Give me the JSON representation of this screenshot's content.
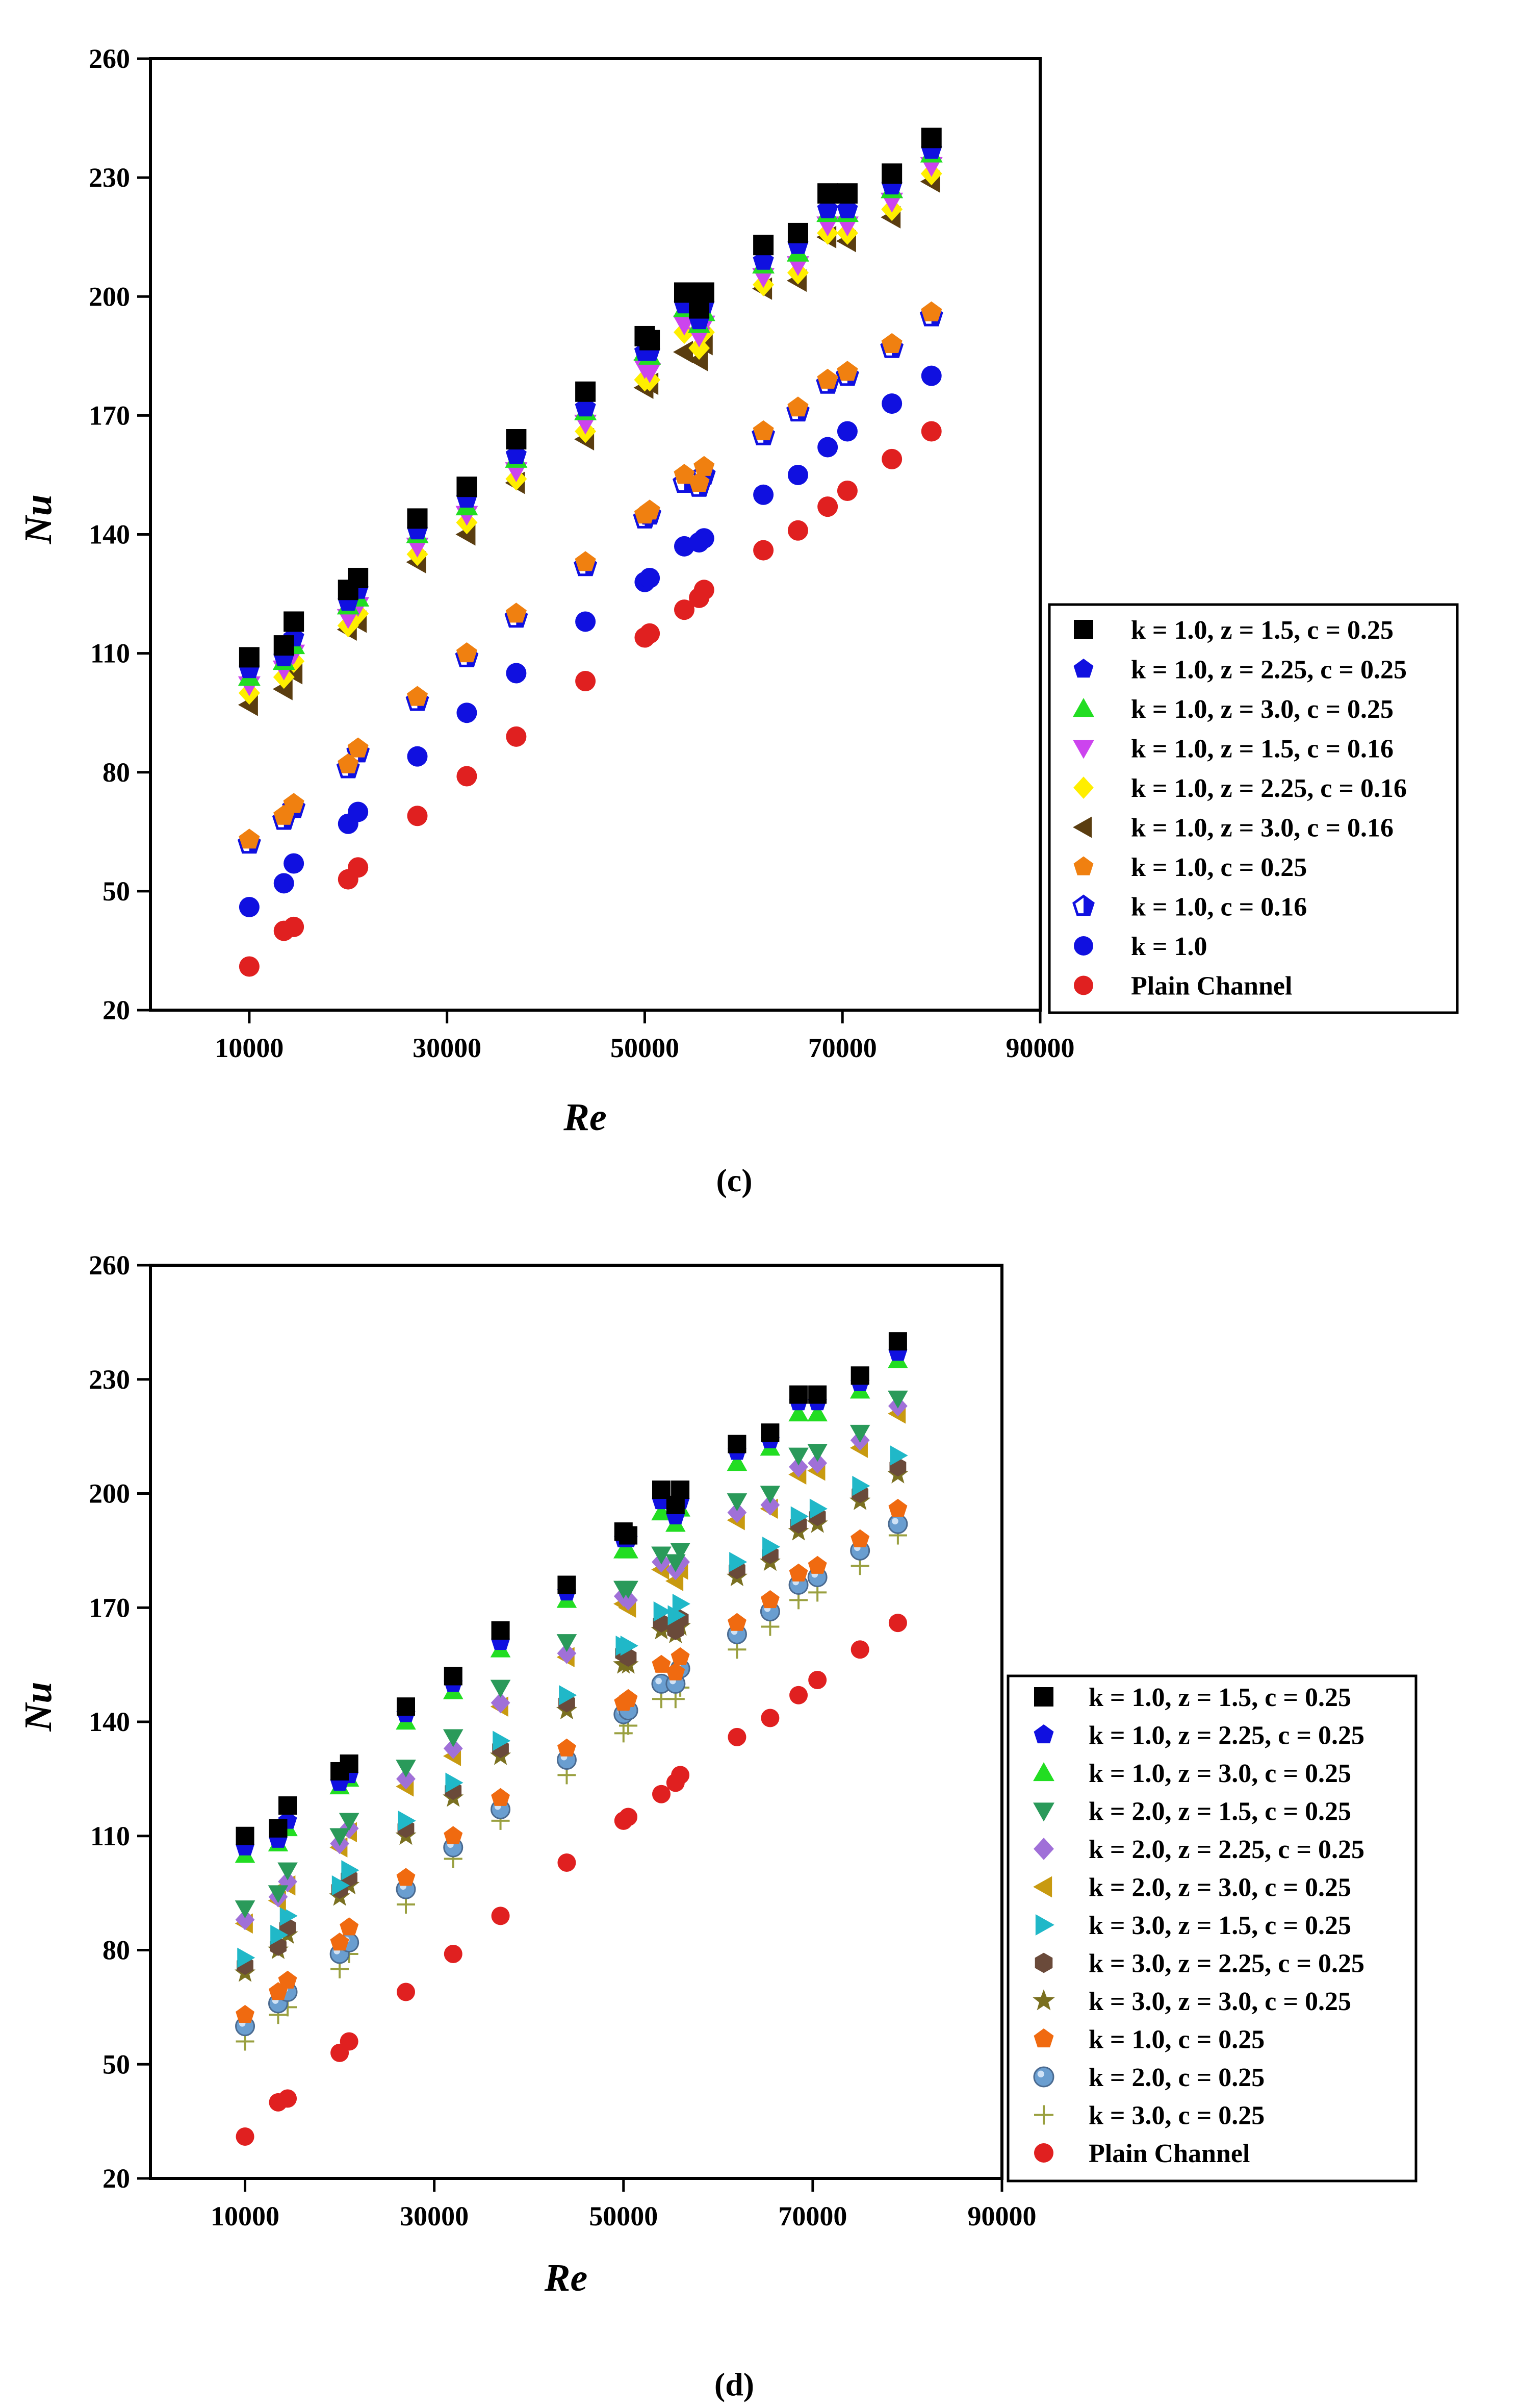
{
  "chart_data": [
    {
      "type": "scatter",
      "panel_label": "(c)",
      "title": "",
      "xlabel": "Re",
      "ylabel": "Nu",
      "xlim": [
        0,
        90000
      ],
      "ylim": [
        20,
        260
      ],
      "xticks": [
        10000,
        30000,
        50000,
        70000,
        90000
      ],
      "yticks": [
        20,
        50,
        80,
        110,
        140,
        170,
        200,
        230,
        260
      ],
      "grid": false,
      "legend_position": "lower-right",
      "x": [
        10000,
        13500,
        14500,
        20000,
        21000,
        27000,
        32000,
        37000,
        44000,
        50000,
        50500,
        54000,
        55500,
        56000,
        62000,
        65500,
        68500,
        70500,
        75000,
        79000
      ],
      "series": [
        {
          "name": "k = 1.0, z = 1.5, c = 0.25",
          "marker": "square",
          "color": "#000000",
          "values": [
            109,
            112,
            118,
            126,
            129,
            144,
            152,
            164,
            176,
            190,
            189,
            201,
            197,
            201,
            213,
            216,
            226,
            226,
            231,
            240
          ]
        },
        {
          "name": "k = 1.0, z = 2.25, c = 0.25",
          "marker": "pentagon",
          "color": "#1010e0",
          "values": [
            106,
            109,
            114,
            123,
            126,
            141,
            149,
            160,
            172,
            186,
            186,
            198,
            194,
            198,
            209,
            213,
            222,
            222,
            228,
            237
          ]
        },
        {
          "name": "k = 1.0, z = 3.0, c = 0.25",
          "marker": "triangle-up",
          "color": "#22dd22",
          "values": [
            104,
            108,
            112,
            122,
            124,
            140,
            147,
            159,
            171,
            186,
            185,
            197,
            193,
            196,
            208,
            211,
            221,
            221,
            227,
            236
          ]
        },
        {
          "name": "k = 1.0, z = 1.5, c = 0.16",
          "marker": "triangle-down",
          "color": "#cc44ee",
          "values": [
            102,
            106,
            110,
            119,
            122,
            137,
            145,
            156,
            168,
            182,
            181,
            193,
            190,
            193,
            205,
            208,
            218,
            218,
            224,
            233
          ]
        },
        {
          "name": "k = 1.0, z = 2.25, c = 0.16",
          "marker": "diamond",
          "color": "#ffee00",
          "values": [
            100,
            104,
            108,
            117,
            120,
            135,
            143,
            154,
            166,
            179,
            179,
            191,
            187,
            191,
            203,
            206,
            216,
            216,
            222,
            231
          ]
        },
        {
          "name": "k = 1.0, z = 3.0, c = 0.16",
          "marker": "triangle-left",
          "color": "#5a3d10",
          "values": [
            97,
            101,
            105,
            116,
            118,
            133,
            140,
            153,
            164,
            177,
            178,
            186,
            184,
            188,
            202,
            204,
            215,
            214,
            220,
            229
          ]
        },
        {
          "name": "k = 1.0, c = 0.25",
          "marker": "pentagon",
          "color": "#f08010",
          "values": [
            63,
            69,
            72,
            82,
            86,
            99,
            110,
            120,
            133,
            145,
            146,
            155,
            153,
            157,
            166,
            172,
            179,
            181,
            188,
            196
          ]
        },
        {
          "name": "k = 1.0, c = 0.16",
          "marker": "pentagon-half",
          "color": "#1010e0",
          "values": [
            62,
            68,
            71,
            81,
            85,
            98,
            109,
            119,
            132,
            144,
            145,
            153,
            152,
            155,
            165,
            171,
            178,
            180,
            187,
            195
          ]
        },
        {
          "name": "k = 1.0",
          "marker": "circle",
          "color": "#1010e0",
          "values": [
            46,
            52,
            57,
            67,
            70,
            84,
            95,
            105,
            118,
            128,
            129,
            137,
            138,
            139,
            150,
            155,
            162,
            166,
            173,
            180
          ]
        },
        {
          "name": "Plain Channel",
          "marker": "circle",
          "color": "#e02020",
          "values": [
            31,
            40,
            41,
            53,
            56,
            69,
            79,
            89,
            103,
            114,
            115,
            121,
            124,
            126,
            136,
            141,
            147,
            151,
            159,
            166
          ]
        }
      ]
    },
    {
      "type": "scatter",
      "panel_label": "(d)",
      "title": "",
      "xlabel": "Re",
      "ylabel": "Nu",
      "xlim": [
        0,
        90000
      ],
      "ylim": [
        20,
        260
      ],
      "xticks": [
        10000,
        30000,
        50000,
        70000,
        90000
      ],
      "yticks": [
        20,
        50,
        80,
        110,
        140,
        170,
        200,
        230,
        260
      ],
      "grid": false,
      "legend_position": "lower-right",
      "x": [
        10000,
        13500,
        14500,
        20000,
        21000,
        27000,
        32000,
        37000,
        44000,
        50000,
        50500,
        54000,
        55500,
        56000,
        62000,
        65500,
        68500,
        70500,
        75000,
        79000
      ],
      "series": [
        {
          "name": "k = 1.0, z = 1.5, c = 0.25",
          "marker": "square",
          "color": "#000000",
          "values": [
            110,
            112,
            118,
            127,
            129,
            144,
            152,
            164,
            176,
            190,
            189,
            201,
            197,
            201,
            213,
            216,
            226,
            226,
            231,
            240
          ]
        },
        {
          "name": "k = 1.0, z = 2.25, c = 0.25",
          "marker": "pentagon",
          "color": "#1010e0",
          "values": [
            107,
            109,
            114,
            124,
            126,
            142,
            150,
            161,
            174,
            188,
            188,
            198,
            194,
            198,
            211,
            214,
            224,
            224,
            229,
            237
          ]
        },
        {
          "name": "k = 1.0, z = 3.0, c = 0.25",
          "marker": "triangle-up",
          "color": "#22dd22",
          "values": [
            105,
            108,
            112,
            123,
            125,
            140,
            148,
            159,
            172,
            185,
            185,
            195,
            192,
            196,
            208,
            212,
            221,
            221,
            227,
            235
          ]
        },
        {
          "name": "k = 2.0, z = 1.5, c = 0.25",
          "marker": "triangle-down",
          "color": "#2a9a5a",
          "values": [
            91,
            95,
            101,
            110,
            114,
            128,
            136,
            149,
            161,
            175,
            175,
            184,
            182,
            185,
            198,
            200,
            210,
            211,
            216,
            225
          ]
        },
        {
          "name": "k = 2.0, z = 2.25, c = 0.25",
          "marker": "diamond",
          "color": "#a070d8",
          "values": [
            88,
            94,
            98,
            108,
            112,
            125,
            133,
            145,
            158,
            173,
            172,
            182,
            180,
            182,
            195,
            197,
            207,
            208,
            214,
            223
          ]
        },
        {
          "name": "k = 2.0, z = 3.0, c = 0.25",
          "marker": "triangle-left",
          "color": "#c89a10",
          "values": [
            87,
            93,
            97,
            107,
            111,
            123,
            131,
            144,
            157,
            171,
            170,
            180,
            177,
            180,
            193,
            196,
            205,
            206,
            212,
            221
          ]
        },
        {
          "name": "k = 3.0, z = 1.5, c = 0.25",
          "marker": "triangle-right",
          "color": "#20b8c8",
          "values": [
            78,
            84,
            89,
            97,
            101,
            114,
            124,
            135,
            147,
            160,
            160,
            169,
            168,
            171,
            182,
            186,
            194,
            196,
            202,
            210
          ]
        },
        {
          "name": "k = 3.0, z = 2.25, c = 0.25",
          "marker": "hexagon",
          "color": "#6a4a3a",
          "values": [
            76,
            81,
            86,
            96,
            99,
            112,
            122,
            133,
            145,
            158,
            157,
            166,
            164,
            167,
            180,
            184,
            192,
            194,
            200,
            207
          ]
        },
        {
          "name": "k = 3.0, z = 3.0, c = 0.25",
          "marker": "star",
          "color": "#7a7020",
          "values": [
            74,
            80,
            84,
            94,
            97,
            110,
            120,
            131,
            143,
            155,
            155,
            164,
            163,
            165,
            178,
            182,
            190,
            192,
            198,
            205
          ]
        },
        {
          "name": "k = 1.0, c = 0.25",
          "marker": "pentagon",
          "color": "#f06a10",
          "values": [
            63,
            69,
            72,
            82,
            86,
            99,
            110,
            120,
            133,
            145,
            146,
            155,
            153,
            157,
            166,
            172,
            179,
            181,
            188,
            196
          ]
        },
        {
          "name": "k = 2.0, c = 0.25",
          "marker": "sphere",
          "color": "#6a9ed0",
          "values": [
            60,
            66,
            69,
            79,
            82,
            96,
            107,
            117,
            130,
            142,
            143,
            150,
            150,
            154,
            163,
            169,
            176,
            178,
            185,
            192
          ]
        },
        {
          "name": "k = 3.0, c = 0.25",
          "marker": "plus",
          "color": "#9aa040",
          "values": [
            56,
            63,
            65,
            75,
            79,
            92,
            104,
            114,
            126,
            137,
            139,
            146,
            146,
            149,
            159,
            165,
            172,
            174,
            181,
            189
          ]
        },
        {
          "name": "Plain Channel",
          "marker": "circle",
          "color": "#e02020",
          "values": [
            31,
            40,
            41,
            53,
            56,
            69,
            79,
            89,
            103,
            114,
            115,
            121,
            124,
            126,
            136,
            141,
            147,
            151,
            159,
            166
          ]
        }
      ]
    }
  ]
}
